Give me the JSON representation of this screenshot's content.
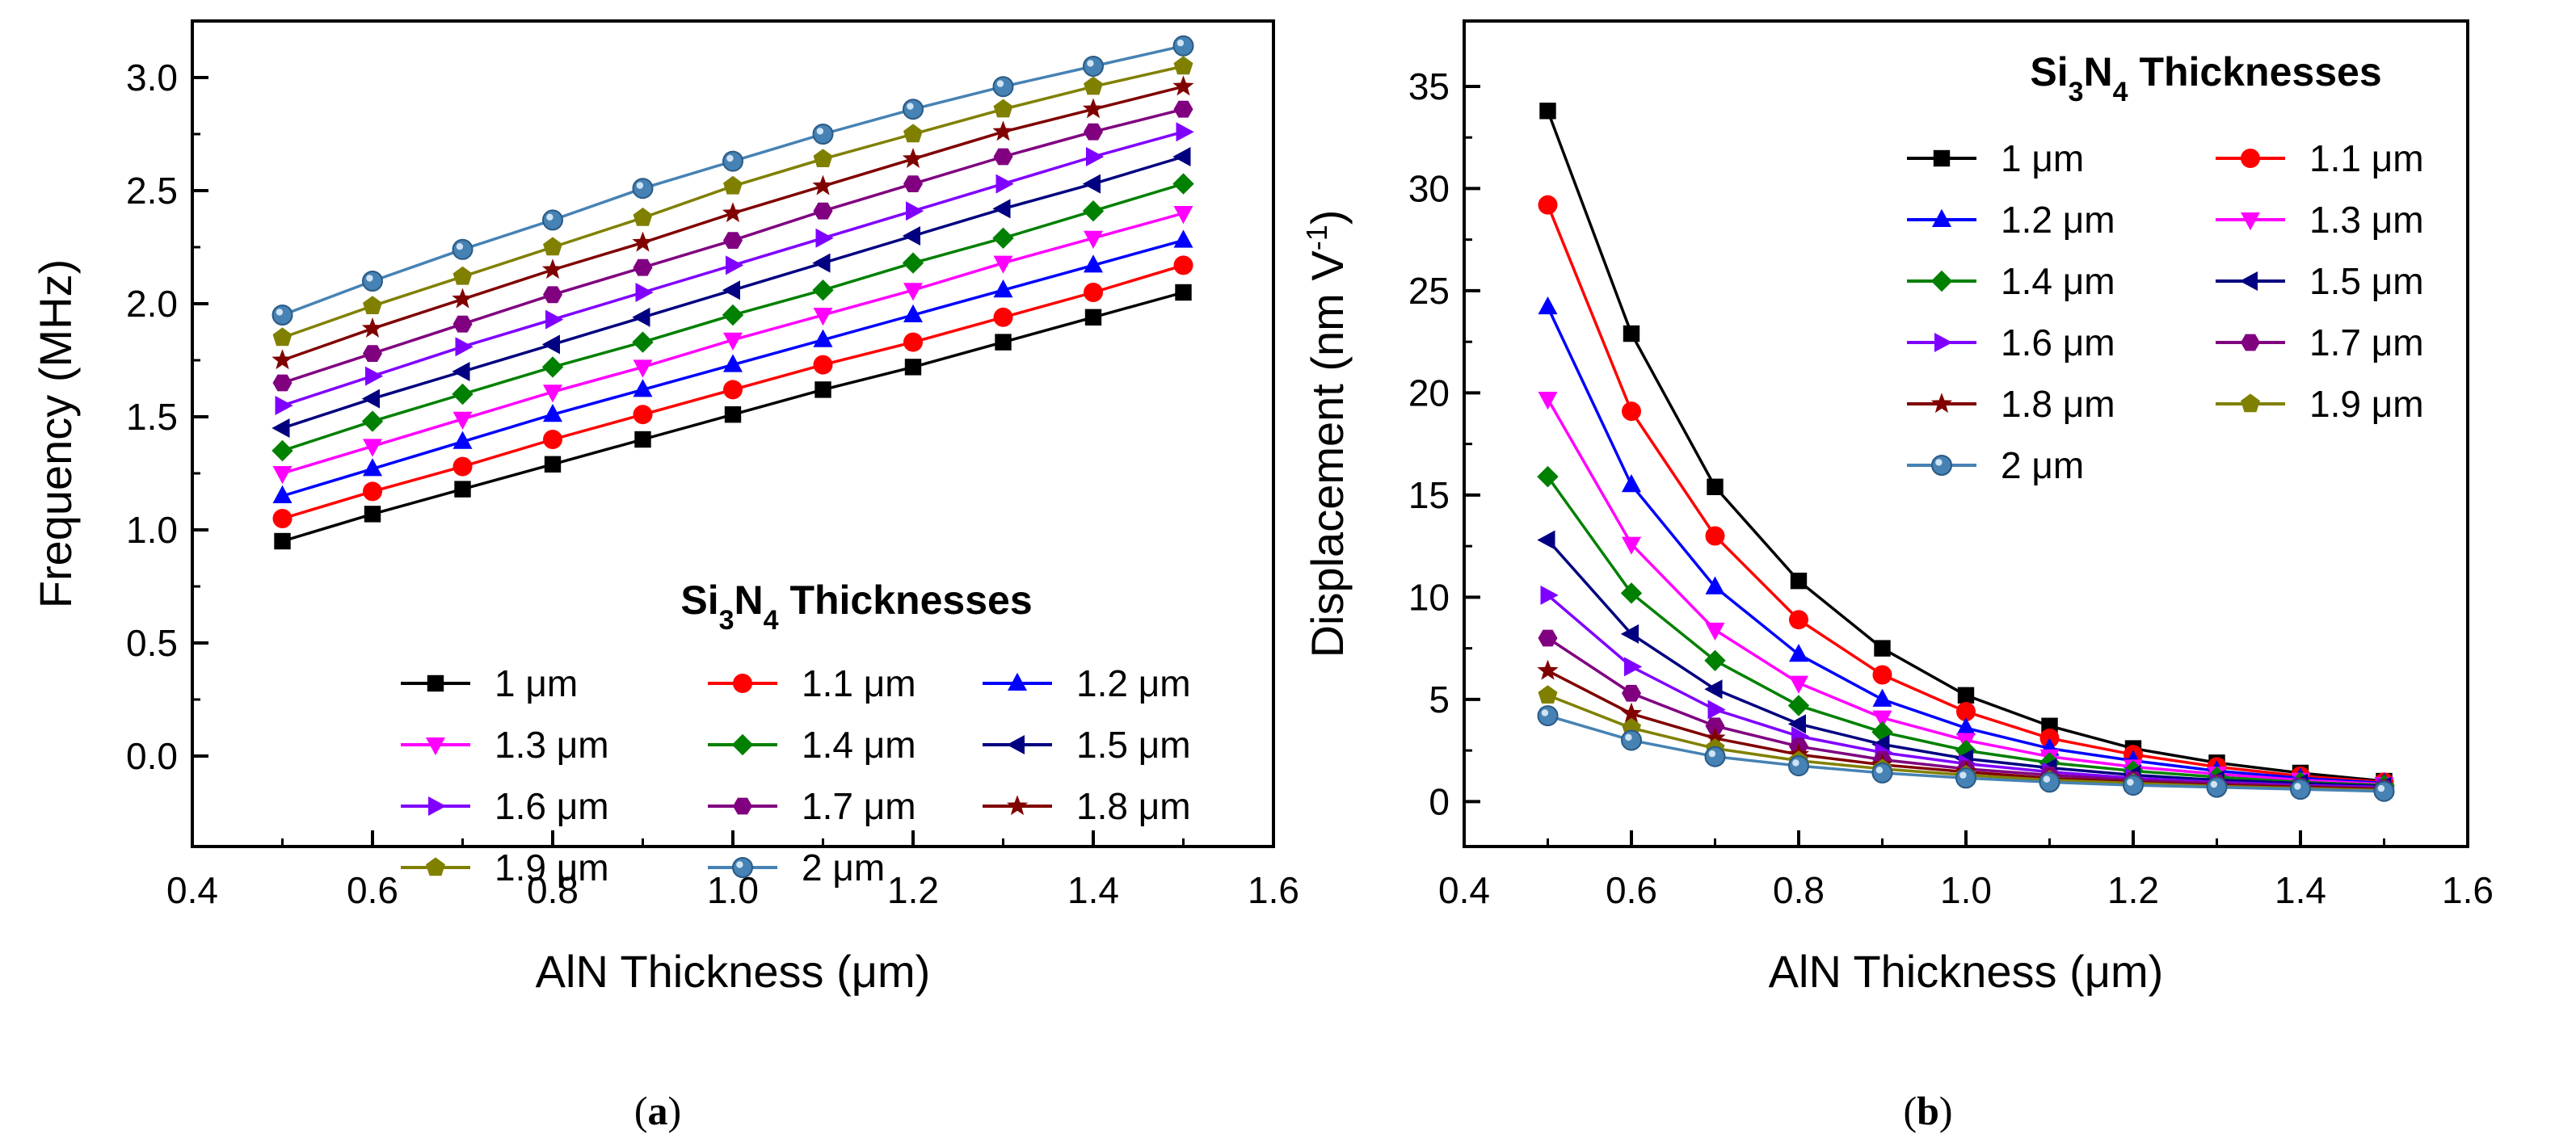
{
  "chart_data": [
    {
      "type": "line",
      "panel": "a",
      "caption_open": "(",
      "caption_letter": "a",
      "caption_close": ")",
      "xlabel": "AlN Thickness (μm)",
      "ylabel": "Frequency (MHz)",
      "xlim": [
        0.4,
        1.6
      ],
      "ylim": [
        -0.4,
        3.25
      ],
      "xticks": [
        "0.4",
        "0.6",
        "0.8",
        "1.0",
        "1.2",
        "1.4",
        "1.6"
      ],
      "yticks": [
        "0.0",
        "0.5",
        "1.0",
        "1.5",
        "2.0",
        "2.5",
        "3.0"
      ],
      "legend_title": {
        "pre": "Si",
        "sub1": "3",
        "mid": "N",
        "sub2": "4",
        "post": " Thicknesses"
      },
      "legend_placement": "bottom-right",
      "x": [
        0.5,
        0.6,
        0.7,
        0.8,
        0.9,
        1.0,
        1.1,
        1.2,
        1.3,
        1.4,
        1.5
      ],
      "series": [
        {
          "name": "1 μm",
          "color": "#000000",
          "marker": "square",
          "values": [
            0.95,
            1.07,
            1.18,
            1.29,
            1.4,
            1.51,
            1.62,
            1.72,
            1.83,
            1.94,
            2.05
          ]
        },
        {
          "name": "1.1 μm",
          "color": "#ff0000",
          "marker": "circle",
          "values": [
            1.05,
            1.17,
            1.28,
            1.4,
            1.51,
            1.62,
            1.73,
            1.83,
            1.94,
            2.05,
            2.17
          ]
        },
        {
          "name": "1.2 μm",
          "color": "#0000ff",
          "marker": "triangle-up",
          "values": [
            1.15,
            1.27,
            1.39,
            1.51,
            1.62,
            1.73,
            1.84,
            1.95,
            2.06,
            2.17,
            2.28
          ]
        },
        {
          "name": "1.3 μm",
          "color": "#ff00ff",
          "marker": "triangle-down",
          "values": [
            1.25,
            1.37,
            1.49,
            1.61,
            1.72,
            1.84,
            1.95,
            2.06,
            2.18,
            2.29,
            2.4
          ]
        },
        {
          "name": "1.4 μm",
          "color": "#008000",
          "marker": "diamond",
          "values": [
            1.35,
            1.48,
            1.6,
            1.72,
            1.83,
            1.95,
            2.06,
            2.18,
            2.29,
            2.41,
            2.53
          ]
        },
        {
          "name": "1.5 μm",
          "color": "#000080",
          "marker": "triangle-left",
          "values": [
            1.45,
            1.58,
            1.7,
            1.82,
            1.94,
            2.06,
            2.18,
            2.3,
            2.42,
            2.53,
            2.65
          ]
        },
        {
          "name": "1.6 μm",
          "color": "#8000ff",
          "marker": "triangle-right",
          "values": [
            1.55,
            1.68,
            1.81,
            1.93,
            2.05,
            2.17,
            2.29,
            2.41,
            2.53,
            2.65,
            2.76
          ]
        },
        {
          "name": "1.7 μm",
          "color": "#800080",
          "marker": "hexagon",
          "values": [
            1.65,
            1.78,
            1.91,
            2.04,
            2.16,
            2.28,
            2.41,
            2.53,
            2.65,
            2.76,
            2.86
          ]
        },
        {
          "name": "1.8 μm",
          "color": "#800000",
          "marker": "star",
          "values": [
            1.75,
            1.89,
            2.02,
            2.15,
            2.27,
            2.4,
            2.52,
            2.64,
            2.76,
            2.86,
            2.96
          ]
        },
        {
          "name": "1.9 μm",
          "color": "#808000",
          "marker": "pentagon",
          "values": [
            1.85,
            1.99,
            2.12,
            2.25,
            2.38,
            2.52,
            2.64,
            2.75,
            2.86,
            2.96,
            3.05
          ]
        },
        {
          "name": "2 μm",
          "color": "#4682b4",
          "marker": "sphere",
          "values": [
            1.95,
            2.1,
            2.24,
            2.37,
            2.51,
            2.63,
            2.75,
            2.86,
            2.96,
            3.05,
            3.14
          ]
        }
      ]
    },
    {
      "type": "line",
      "panel": "b",
      "caption_open": "(",
      "caption_letter": "b",
      "caption_close": ")",
      "xlabel": "AlN Thickness (μm)",
      "ylabel": {
        "main": "Displacement (nm V",
        "sup": "-1",
        "close": ")"
      },
      "xlim": [
        0.4,
        1.6
      ],
      "ylim": [
        -2.2,
        38.2
      ],
      "xticks": [
        "0.4",
        "0.6",
        "0.8",
        "1.0",
        "1.2",
        "1.4",
        "1.6"
      ],
      "yticks": [
        "0",
        "5",
        "10",
        "15",
        "20",
        "25",
        "30",
        "35"
      ],
      "legend_title": {
        "pre": "Si",
        "sub1": "3",
        "mid": "N",
        "sub2": "4",
        "post": " Thicknesses"
      },
      "legend_placement": "top-right",
      "x": [
        0.5,
        0.6,
        0.7,
        0.8,
        0.9,
        1.0,
        1.1,
        1.2,
        1.3,
        1.4,
        1.5
      ],
      "series": [
        {
          "name": "1 μm",
          "color": "#000000",
          "marker": "square",
          "values": [
            33.8,
            22.9,
            15.4,
            10.8,
            7.5,
            5.2,
            3.7,
            2.6,
            1.9,
            1.4,
            1.0
          ]
        },
        {
          "name": "1.1 μm",
          "color": "#ff0000",
          "marker": "circle",
          "values": [
            29.2,
            19.1,
            13.0,
            8.9,
            6.2,
            4.4,
            3.1,
            2.3,
            1.7,
            1.25,
            0.95
          ]
        },
        {
          "name": "1.2 μm",
          "color": "#0000ff",
          "marker": "triangle-up",
          "values": [
            24.2,
            15.5,
            10.5,
            7.2,
            5.0,
            3.6,
            2.6,
            2.0,
            1.5,
            1.15,
            0.9
          ]
        },
        {
          "name": "1.3 μm",
          "color": "#ff00ff",
          "marker": "triangle-down",
          "values": [
            19.7,
            12.6,
            8.4,
            5.8,
            4.1,
            3.0,
            2.2,
            1.7,
            1.35,
            1.05,
            0.85
          ]
        },
        {
          "name": "1.4 μm",
          "color": "#008000",
          "marker": "diamond",
          "values": [
            15.9,
            10.2,
            6.9,
            4.7,
            3.4,
            2.5,
            1.9,
            1.5,
            1.2,
            0.95,
            0.8
          ]
        },
        {
          "name": "1.5 μm",
          "color": "#000080",
          "marker": "triangle-left",
          "values": [
            12.8,
            8.2,
            5.5,
            3.8,
            2.8,
            2.1,
            1.65,
            1.3,
            1.05,
            0.9,
            0.75
          ]
        },
        {
          "name": "1.6 μm",
          "color": "#8000ff",
          "marker": "triangle-right",
          "values": [
            10.1,
            6.6,
            4.5,
            3.2,
            2.4,
            1.85,
            1.45,
            1.15,
            0.95,
            0.8,
            0.7
          ]
        },
        {
          "name": "1.7 μm",
          "color": "#800080",
          "marker": "hexagon",
          "values": [
            8.0,
            5.3,
            3.7,
            2.7,
            2.05,
            1.6,
            1.3,
            1.05,
            0.9,
            0.75,
            0.65
          ]
        },
        {
          "name": "1.8 μm",
          "color": "#800000",
          "marker": "star",
          "values": [
            6.4,
            4.3,
            3.1,
            2.3,
            1.8,
            1.45,
            1.15,
            0.95,
            0.8,
            0.7,
            0.6
          ]
        },
        {
          "name": "1.9 μm",
          "color": "#808000",
          "marker": "pentagon",
          "values": [
            5.2,
            3.6,
            2.6,
            2.0,
            1.6,
            1.3,
            1.05,
            0.9,
            0.75,
            0.65,
            0.55
          ]
        },
        {
          "name": "2 μm",
          "color": "#4682b4",
          "marker": "sphere",
          "values": [
            4.2,
            3.0,
            2.2,
            1.75,
            1.4,
            1.15,
            0.95,
            0.8,
            0.7,
            0.6,
            0.5
          ]
        }
      ]
    }
  ]
}
